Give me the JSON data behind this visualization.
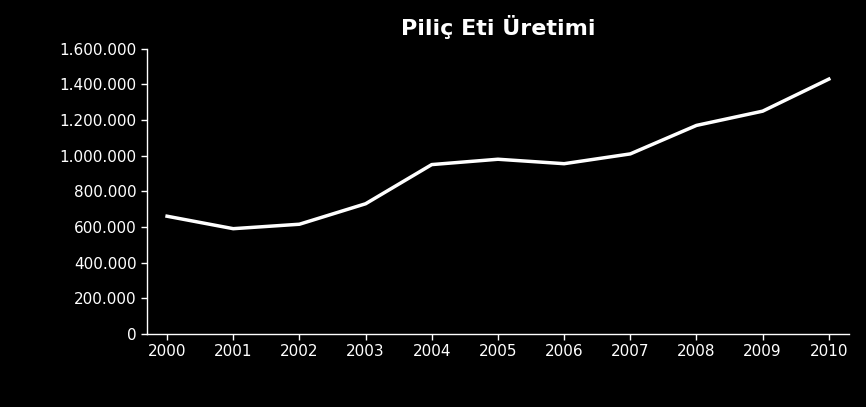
{
  "title": "Piliç Eti Üretimi",
  "years": [
    2000,
    2001,
    2002,
    2003,
    2004,
    2005,
    2006,
    2007,
    2008,
    2009,
    2010
  ],
  "values": [
    660000,
    590000,
    615000,
    730000,
    950000,
    980000,
    955000,
    1010000,
    1170000,
    1250000,
    1430000
  ],
  "line_color": "#ffffff",
  "background_color": "#000000",
  "text_color": "#ffffff",
  "tick_color": "#ffffff",
  "spine_color": "#ffffff",
  "ylim": [
    0,
    1600000
  ],
  "yticks": [
    0,
    200000,
    400000,
    600000,
    800000,
    1000000,
    1200000,
    1400000,
    1600000
  ],
  "ytick_labels": [
    "0",
    "200.000",
    "400.000",
    "600.000",
    "800.000",
    "1.000.000",
    "1.200.000",
    "1.400.000",
    "1.600.000"
  ],
  "line_width": 2.5,
  "title_fontsize": 16,
  "tick_fontsize": 11,
  "figsize": [
    8.66,
    4.07
  ],
  "dpi": 100
}
